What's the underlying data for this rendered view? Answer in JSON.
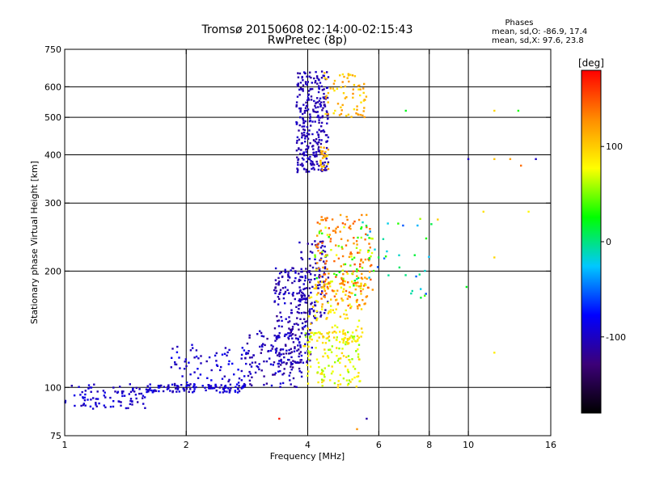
{
  "chart_data": {
    "type": "scatter",
    "title": "Tromsø 20150608 02:14:00-02:15:43",
    "subtitle": "RwPretec (8p)",
    "xlabel": "Frequency [MHz]",
    "ylabel": "Stationary phase Virtual Height [km]",
    "x_scale": "log",
    "y_scale": "log",
    "xlim": [
      1,
      16
    ],
    "ylim": [
      75,
      750
    ],
    "x_ticks": [
      1,
      2,
      4,
      6,
      8,
      10,
      16
    ],
    "x_tick_labels": [
      "1",
      "2",
      "4",
      "6",
      "8",
      "10",
      "16"
    ],
    "y_ticks": [
      75,
      100,
      200,
      300,
      400,
      500,
      600,
      750
    ],
    "y_tick_labels": [
      "75",
      "100",
      "200",
      "300",
      "400",
      "500",
      "600",
      "750"
    ],
    "grid": true,
    "annotation": {
      "heading": "Phases",
      "line_o": "mean, sd,O:  -86.9, 17.4",
      "line_x": "mean, sd,X:  97.6, 23.8"
    },
    "colorbar": {
      "label": "[deg]",
      "range": [
        -180,
        180
      ],
      "ticks": [
        100,
        0,
        -100
      ],
      "tick_labels": [
        "100",
        "0",
        "-100"
      ],
      "colors": [
        "#000000",
        "#3c0078",
        "#0000ff",
        "#00c8ff",
        "#00ff00",
        "#ffff00",
        "#ff8c00",
        "#ff0000"
      ]
    },
    "series": [
      {
        "type": "density",
        "clusters": [
          {
            "x": [
              1.0,
              1.6
            ],
            "y": [
              88,
              102
            ],
            "phase": [
              -110,
              -85
            ],
            "n": 90
          },
          {
            "x": [
              1.6,
              2.8
            ],
            "y": [
              97,
              102
            ],
            "phase": [
              -110,
              -80
            ],
            "n": 110
          },
          {
            "x": [
              1.8,
              2.9
            ],
            "y": [
              100,
              130
            ],
            "phase": [
              -110,
              -80
            ],
            "n": 80
          },
          {
            "x": [
              2.8,
              3.9
            ],
            "y": [
              100,
              140
            ],
            "phase": [
              -120,
              -90
            ],
            "n": 130
          },
          {
            "x": [
              3.3,
              4.1
            ],
            "y": [
              115,
              205
            ],
            "phase": [
              -120,
              -90
            ],
            "n": 200
          },
          {
            "x": [
              3.8,
              4.5
            ],
            "y": [
              150,
              240
            ],
            "phase": [
              -115,
              -95
            ],
            "n": 110
          },
          {
            "x": [
              3.9,
              5.4
            ],
            "y": [
              100,
              140
            ],
            "phase": [
              50,
              100
            ],
            "n": 150
          },
          {
            "x": [
              4.0,
              5.5
            ],
            "y": [
              130,
              190
            ],
            "phase": [
              70,
              110
            ],
            "n": 110
          },
          {
            "x": [
              4.2,
              5.8
            ],
            "y": [
              160,
              280
            ],
            "phase": [
              115,
              150
            ],
            "n": 170
          },
          {
            "x": [
              4.1,
              5.8
            ],
            "y": [
              180,
              260
            ],
            "phase": [
              25,
              80
            ],
            "n": 50
          },
          {
            "x": [
              3.75,
              4.5
            ],
            "y": [
              360,
              660
            ],
            "phase": [
              -115,
              -95
            ],
            "n": 300
          },
          {
            "x": [
              4.4,
              5.6
            ],
            "y": [
              500,
              660
            ],
            "phase": [
              85,
              130
            ],
            "n": 70
          },
          {
            "x": [
              4.3,
              4.5
            ],
            "y": [
              360,
              420
            ],
            "phase": [
              90,
              125
            ],
            "n": 25
          },
          {
            "x": [
              5.2,
              8.2
            ],
            "y": [
              170,
              270
            ],
            "phase": [
              -60,
              40
            ],
            "n": 40
          }
        ]
      }
    ],
    "points": [
      {
        "x": 7.0,
        "y": 520,
        "phase": 20
      },
      {
        "x": 10.0,
        "y": 390,
        "phase": -100
      },
      {
        "x": 11.6,
        "y": 520,
        "phase": 95
      },
      {
        "x": 11.6,
        "y": 390,
        "phase": 105
      },
      {
        "x": 12.7,
        "y": 390,
        "phase": 120
      },
      {
        "x": 13.3,
        "y": 520,
        "phase": 30
      },
      {
        "x": 13.5,
        "y": 375,
        "phase": 140
      },
      {
        "x": 14.7,
        "y": 390,
        "phase": -100
      },
      {
        "x": 10.9,
        "y": 285,
        "phase": 90
      },
      {
        "x": 14.1,
        "y": 285,
        "phase": 80
      },
      {
        "x": 11.6,
        "y": 217,
        "phase": 95
      },
      {
        "x": 9.9,
        "y": 182,
        "phase": 20
      },
      {
        "x": 8.4,
        "y": 272,
        "phase": 100
      },
      {
        "x": 7.6,
        "y": 273,
        "phase": 60
      },
      {
        "x": 5.3,
        "y": 78,
        "phase": 125
      },
      {
        "x": 5.6,
        "y": 83,
        "phase": -110
      },
      {
        "x": 3.4,
        "y": 83,
        "phase": 170
      },
      {
        "x": 11.6,
        "y": 123,
        "phase": 85
      }
    ]
  }
}
